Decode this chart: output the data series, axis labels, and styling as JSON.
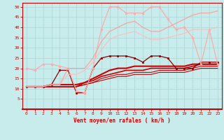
{
  "xlabel": "Vent moyen/en rafales ( km/h )",
  "background_color": "#c8ecec",
  "grid_color": "#aad4d4",
  "x_values": [
    0,
    1,
    2,
    3,
    4,
    5,
    6,
    7,
    8,
    9,
    10,
    11,
    12,
    13,
    14,
    15,
    16,
    17,
    18,
    19,
    20,
    21,
    22,
    23
  ],
  "series": [
    {
      "y": [
        11,
        11,
        11,
        11,
        11,
        11,
        11,
        12,
        13,
        14,
        15,
        16,
        16,
        17,
        17,
        17,
        18,
        18,
        18,
        18,
        19,
        20,
        20,
        20
      ],
      "color": "#cc0000",
      "linewidth": 0.8,
      "marker": null,
      "alpha": 1.0
    },
    {
      "y": [
        11,
        11,
        11,
        11,
        11,
        11,
        11,
        12,
        13,
        15,
        16,
        17,
        17,
        18,
        18,
        18,
        19,
        19,
        19,
        19,
        20,
        21,
        21,
        21
      ],
      "color": "#cc0000",
      "linewidth": 0.8,
      "marker": null,
      "alpha": 1.0
    },
    {
      "y": [
        11,
        11,
        11,
        11,
        11,
        11,
        11,
        13,
        14,
        16,
        17,
        18,
        19,
        19,
        19,
        20,
        20,
        20,
        20,
        20,
        21,
        22,
        22,
        22
      ],
      "color": "#cc0000",
      "linewidth": 1.2,
      "marker": null,
      "alpha": 1.0
    },
    {
      "y": [
        11,
        11,
        11,
        12,
        12,
        12,
        12,
        13,
        15,
        17,
        19,
        20,
        20,
        21,
        21,
        21,
        21,
        21,
        21,
        21,
        22,
        22,
        22,
        22
      ],
      "color": "#cc0000",
      "linewidth": 1.5,
      "marker": null,
      "alpha": 1.0
    },
    {
      "y": [
        11,
        11,
        11,
        12,
        19,
        19,
        8,
        8,
        20,
        25,
        26,
        26,
        26,
        25,
        23,
        26,
        26,
        25,
        20,
        20,
        20,
        23,
        23,
        23
      ],
      "color": "#880000",
      "linewidth": 0.9,
      "marker": "s",
      "markersize": 1.8,
      "alpha": 1.0
    },
    {
      "y": [
        20,
        19,
        22,
        22,
        21,
        20,
        9,
        8,
        20,
        39,
        50,
        50,
        47,
        47,
        47,
        50,
        50,
        44,
        39,
        40,
        35,
        22,
        39,
        22
      ],
      "color": "#ffaaaa",
      "linewidth": 0.9,
      "marker": "o",
      "markersize": 2.0,
      "alpha": 1.0
    },
    {
      "y": [
        11,
        11,
        11,
        12,
        12,
        20,
        20,
        20,
        25,
        33,
        38,
        40,
        42,
        43,
        40,
        38,
        38,
        40,
        42,
        44,
        46,
        47,
        47,
        48
      ],
      "color": "#ff9999",
      "linewidth": 0.9,
      "marker": null,
      "alpha": 0.85
    },
    {
      "y": [
        11,
        11,
        11,
        12,
        12,
        17,
        17,
        19,
        23,
        29,
        34,
        36,
        37,
        38,
        36,
        34,
        34,
        35,
        36,
        37,
        39,
        39,
        39,
        40
      ],
      "color": "#ffbbbb",
      "linewidth": 0.9,
      "marker": null,
      "alpha": 0.85
    }
  ],
  "xlim": [
    -0.5,
    23.5
  ],
  "ylim": [
    0,
    52
  ],
  "xticks": [
    0,
    1,
    2,
    3,
    4,
    5,
    6,
    7,
    8,
    9,
    10,
    11,
    12,
    13,
    14,
    15,
    16,
    17,
    18,
    19,
    20,
    21,
    22,
    23
  ],
  "yticks": [
    5,
    10,
    15,
    20,
    25,
    30,
    35,
    40,
    45,
    50
  ]
}
